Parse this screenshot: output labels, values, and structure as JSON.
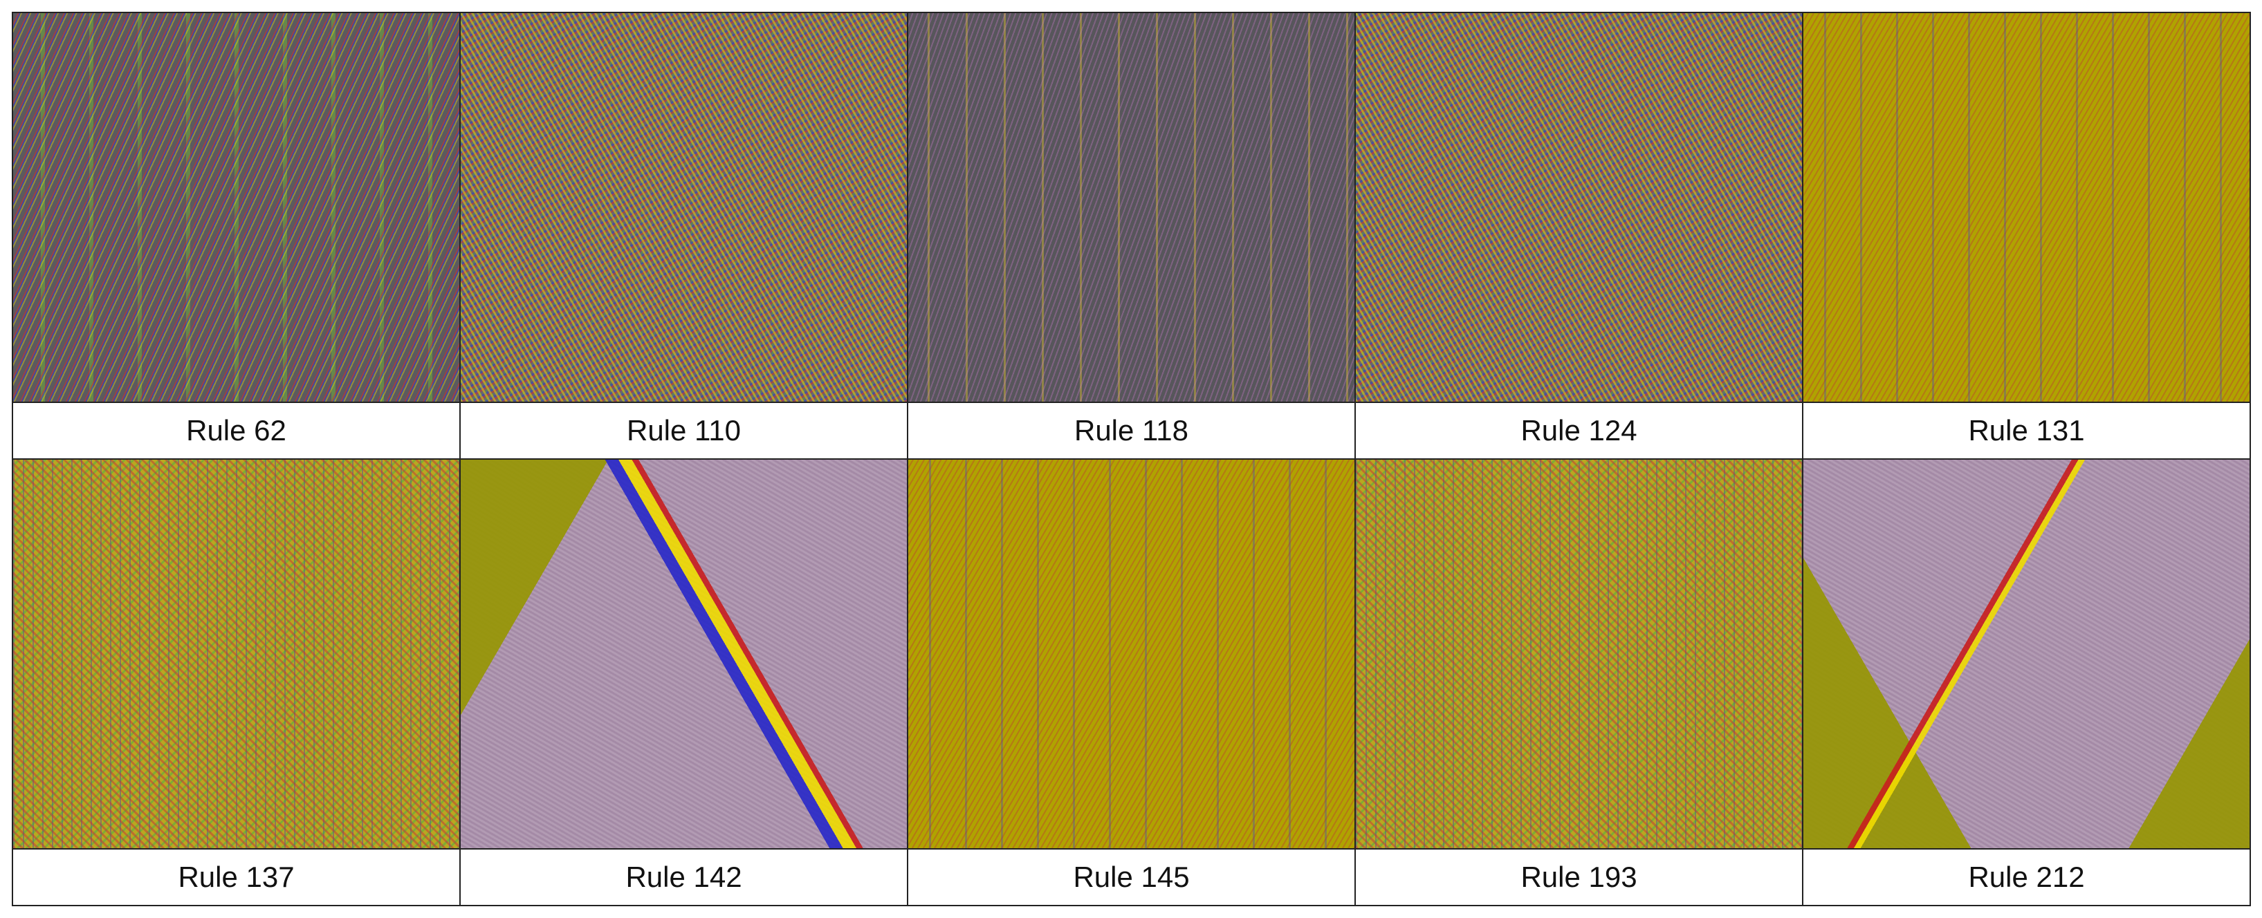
{
  "panels": [
    {
      "label": "Rule 62"
    },
    {
      "label": "Rule 110"
    },
    {
      "label": "Rule 118"
    },
    {
      "label": "Rule 124"
    },
    {
      "label": "Rule 131"
    },
    {
      "label": "Rule 137"
    },
    {
      "label": "Rule 142"
    },
    {
      "label": "Rule 145"
    },
    {
      "label": "Rule 193"
    },
    {
      "label": "Rule 212"
    }
  ]
}
